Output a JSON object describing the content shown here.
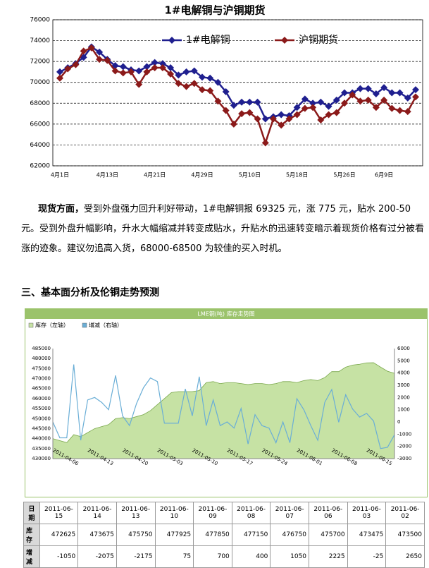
{
  "chart_data": [
    {
      "type": "line",
      "title": "1#电解铜与沪铜期货",
      "categories": [
        "4月1日",
        null,
        null,
        null,
        null,
        null,
        "4月13日",
        null,
        null,
        null,
        null,
        null,
        "4月21日",
        null,
        null,
        null,
        null,
        null,
        "4月29日",
        null,
        null,
        null,
        null,
        null,
        "5月10日",
        null,
        null,
        null,
        null,
        null,
        "5月18日",
        null,
        null,
        null,
        null,
        null,
        "5月26日",
        null,
        null,
        null,
        null,
        "6月9日",
        null,
        null,
        null,
        null
      ],
      "series": [
        {
          "name": "1#电解铜",
          "color": "#1f1f8f",
          "values": [
            71000,
            71400,
            71800,
            72400,
            73400,
            72900,
            72200,
            71600,
            71500,
            71200,
            71100,
            71500,
            71900,
            71800,
            71400,
            70700,
            71000,
            71100,
            70500,
            70400,
            70000,
            69100,
            67800,
            68100,
            68100,
            68100,
            66500,
            66700,
            66900,
            66800,
            67600,
            68400,
            68000,
            68100,
            67700,
            68300,
            69000,
            69000,
            69400,
            69400,
            68900,
            69500,
            69000,
            69000,
            68500,
            69300
          ]
        },
        {
          "name": "沪铜期货",
          "color": "#8b1a1a",
          "values": [
            70400,
            71300,
            71700,
            73000,
            73300,
            72200,
            72100,
            71100,
            70900,
            71000,
            69800,
            71000,
            71400,
            71400,
            70800,
            69900,
            69600,
            69900,
            69300,
            69200,
            68200,
            67300,
            66000,
            67000,
            67100,
            66500,
            64200,
            66500,
            65900,
            66500,
            66900,
            67500,
            67600,
            66400,
            66900,
            67100,
            68000,
            68800,
            68200,
            68300,
            67600,
            68300,
            67500,
            67300,
            67200,
            68600
          ]
        }
      ],
      "ylim": [
        62000,
        76000
      ],
      "yticks": [
        62000,
        64000,
        66000,
        68000,
        70000,
        72000,
        74000,
        76000
      ],
      "grid": true
    },
    {
      "type": "combo",
      "title": "LME铜(吨) 库存走势图",
      "categories": [
        null,
        null,
        null,
        null,
        "2011-04-06",
        null,
        null,
        null,
        null,
        "2011-04-13",
        null,
        null,
        null,
        null,
        "2011-04-20",
        null,
        null,
        null,
        null,
        "2011-05-03",
        null,
        null,
        null,
        null,
        "2011-05-10",
        null,
        null,
        null,
        null,
        "2011-05-17",
        null,
        null,
        null,
        null,
        "2011-05-24",
        null,
        null,
        null,
        null,
        "2011-06-01",
        null,
        null,
        null,
        null,
        "2011-06-08",
        null,
        null,
        null,
        null,
        "2011-06-15"
      ],
      "series": [
        {
          "name": "库存（左轴）",
          "type": "area",
          "color": "#c6e2a4",
          "values": [
            440000,
            439000,
            438000,
            442000,
            441000,
            443000,
            445000,
            446000,
            447000,
            450000,
            450500,
            450000,
            451000,
            452000,
            454000,
            457000,
            460000,
            463000,
            463500,
            463500,
            463500,
            464000,
            468000,
            468500,
            467500,
            468000,
            468000,
            467500,
            467000,
            467500,
            467500,
            467000,
            467500,
            468500,
            468500,
            468000,
            469000,
            469500,
            469000,
            470500,
            473500,
            473475,
            475700,
            476750,
            477150,
            477850,
            477925,
            475750,
            473675,
            472625
          ]
        },
        {
          "name": "增减（右轴）",
          "type": "line",
          "axis": "y2",
          "color": "#6aaed6",
          "values": [
            0,
            -1300,
            -1300,
            4700,
            -1500,
            1800,
            2000,
            1600,
            1000,
            3800,
            500,
            -300,
            1500,
            2800,
            3600,
            3300,
            -100,
            -100,
            -100,
            2700,
            500,
            3700,
            -300,
            1800,
            -300,
            0,
            -500,
            1100,
            -1800,
            600,
            -300,
            -500,
            -1700,
            0,
            -1700,
            1900,
            1000,
            -300,
            -1500,
            1600,
            2650,
            -25,
            2225,
            1050,
            400,
            700,
            75,
            -2175,
            -2075,
            -1050
          ]
        }
      ],
      "ylim": [
        430000,
        485000
      ],
      "yticks": [
        430000,
        435000,
        440000,
        445000,
        450000,
        455000,
        460000,
        465000,
        470000,
        475000,
        480000,
        485000
      ],
      "y2lim": [
        -3000,
        6000
      ],
      "y2ticks": [
        -3000,
        -2000,
        -1000,
        0,
        1000,
        2000,
        3000,
        4000,
        5000,
        6000
      ],
      "grid": false
    }
  ],
  "document": {
    "lead": "现货方面，",
    "body": "受到外盘强力回升利好带动，1#电解铜报 69325 元，涨 775 元，贴水 200-50 元。受到外盘升幅影响，升水大幅缩减并转变成贴水，升贴水的迅速转变暗示着现货价格有过分被看涨的迹象。建议勿追高入货，68000-68500 为较佳的买入时机。",
    "heading": "三、基本面分析及伦铜走势预测"
  },
  "table": {
    "rows": [
      [
        "日期",
        "2011-06-15",
        "2011-06-14",
        "2011-06-13",
        "2011-06-10",
        "2011-06-09",
        "2011-06-08",
        "2011-06-07",
        "2011-06-06",
        "2011-06-03",
        "2011-06-02"
      ],
      [
        "库存",
        "472625",
        "473675",
        "475750",
        "477925",
        "477850",
        "477150",
        "476750",
        "475700",
        "473475",
        "473500"
      ],
      [
        "增减",
        "-1050",
        "-2075",
        "-2175",
        "75",
        "700",
        "400",
        "1050",
        "2225",
        "-25",
        "2650"
      ]
    ]
  }
}
